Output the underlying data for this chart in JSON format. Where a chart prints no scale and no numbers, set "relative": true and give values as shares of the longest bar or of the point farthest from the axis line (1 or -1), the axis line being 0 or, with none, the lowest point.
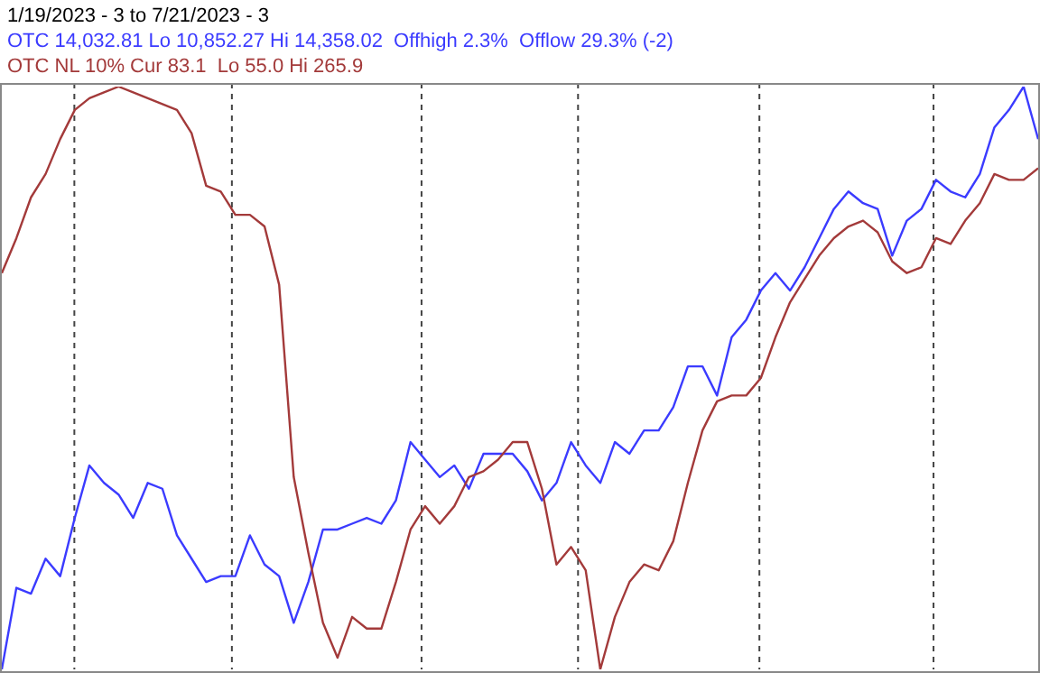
{
  "chart_data": {
    "type": "line",
    "title": "1/19/2023 - 3 to 7/21/2023 - 3",
    "relative": true,
    "grid": "x",
    "categories": [
      null,
      null,
      null,
      null,
      null,
      null,
      null,
      null,
      null,
      null,
      null,
      null,
      null,
      null,
      null,
      null,
      null,
      null,
      null,
      null,
      null,
      null,
      null,
      null,
      null,
      null,
      null,
      null,
      null,
      null,
      null,
      null,
      null,
      null,
      null,
      null,
      null,
      null,
      null,
      null,
      null,
      null,
      null,
      null,
      null,
      null,
      null,
      null,
      null,
      null,
      null,
      null,
      null,
      null,
      null,
      null,
      null,
      null,
      null,
      null,
      null,
      null,
      null,
      null,
      null,
      null,
      null,
      null,
      null,
      null,
      null,
      null
    ],
    "series": [
      {
        "name": "OTC 14,032.81 Lo 10,852.27 Hi 14,358.02  Offhigh 2.3%  Offlow 29.3% (-2)",
        "color": "#3b3bff",
        "values": [
          0.0,
          0.14,
          0.13,
          0.19,
          0.16,
          0.26,
          0.35,
          0.32,
          0.3,
          0.26,
          0.32,
          0.31,
          0.23,
          0.19,
          0.15,
          0.16,
          0.16,
          0.23,
          0.18,
          0.16,
          0.08,
          0.15,
          0.24,
          0.24,
          0.25,
          0.26,
          0.25,
          0.29,
          0.39,
          0.36,
          0.33,
          0.35,
          0.31,
          0.37,
          0.37,
          0.37,
          0.34,
          0.29,
          0.32,
          0.39,
          0.35,
          0.32,
          0.39,
          0.37,
          0.41,
          0.41,
          0.45,
          0.52,
          0.52,
          0.47,
          0.57,
          0.6,
          0.65,
          0.68,
          0.65,
          0.69,
          0.74,
          0.79,
          0.82,
          0.8,
          0.79,
          0.71,
          0.77,
          0.79,
          0.84,
          0.82,
          0.81,
          0.85,
          0.93,
          0.96,
          1.0,
          0.91
        ]
      },
      {
        "name": "OTC NL 10% Cur 83.1  Lo 55.0 Hi 265.9",
        "color": "#a33a3a",
        "values": [
          0.68,
          0.74,
          0.81,
          0.85,
          0.91,
          0.96,
          0.98,
          0.99,
          1.0,
          0.99,
          0.98,
          0.97,
          0.96,
          0.92,
          0.83,
          0.82,
          0.78,
          0.78,
          0.76,
          0.66,
          0.33,
          0.2,
          0.08,
          0.02,
          0.09,
          0.07,
          0.07,
          0.15,
          0.24,
          0.28,
          0.25,
          0.28,
          0.33,
          0.34,
          0.36,
          0.39,
          0.39,
          0.31,
          0.18,
          0.21,
          0.17,
          0.0,
          0.09,
          0.15,
          0.18,
          0.17,
          0.22,
          0.32,
          0.41,
          0.46,
          0.47,
          0.47,
          0.5,
          0.57,
          0.63,
          0.67,
          0.71,
          0.74,
          0.76,
          0.77,
          0.75,
          0.7,
          0.68,
          0.69,
          0.74,
          0.73,
          0.77,
          0.8,
          0.85,
          0.84,
          0.84,
          0.86
        ]
      }
    ]
  }
}
